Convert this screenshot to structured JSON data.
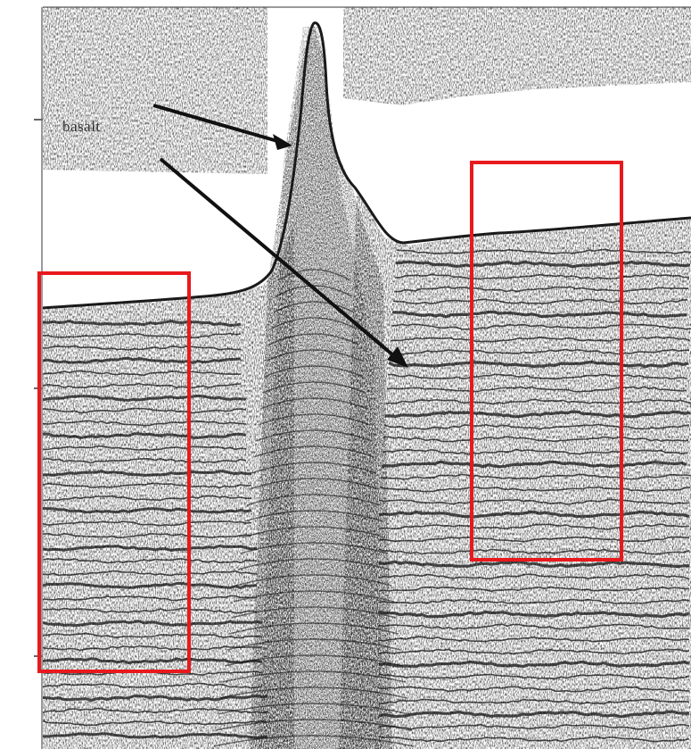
{
  "annotation": {
    "label": "basalt"
  },
  "colors": {
    "highlight_box": "#e8191d",
    "arrow": "#111111",
    "reflector": "#1a1a1a",
    "background": "#ffffff"
  }
}
